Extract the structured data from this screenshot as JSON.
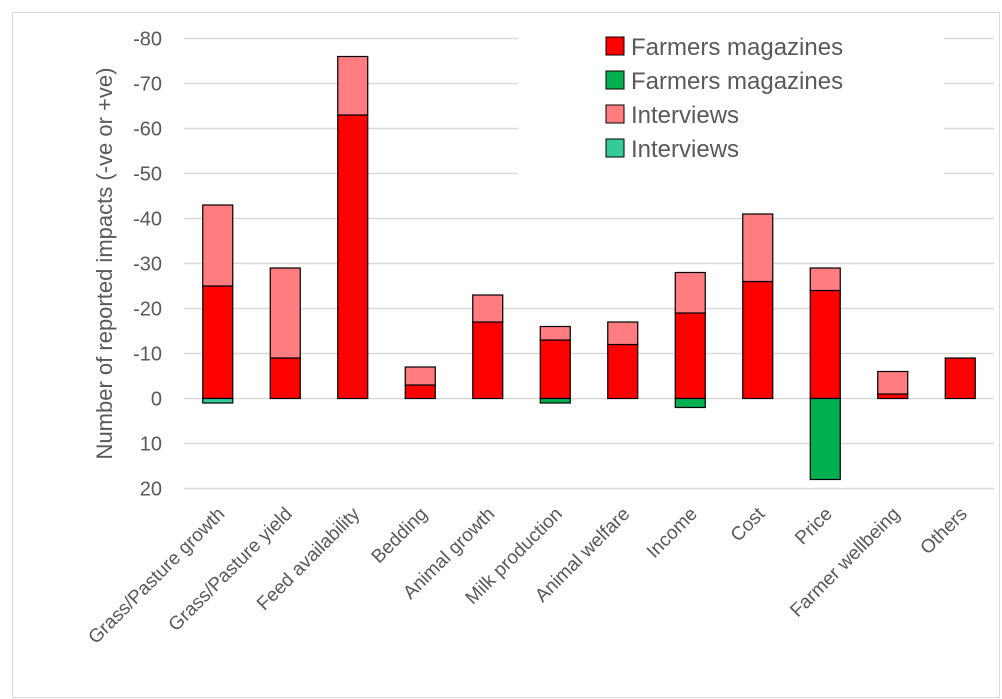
{
  "chart_data": {
    "type": "bar",
    "stacked": true,
    "ylabel": "Number of reported impacts (-ve or +ve)",
    "ylim": [
      -80,
      20
    ],
    "y_ticks": [
      -80,
      -70,
      -60,
      -50,
      -40,
      -30,
      -20,
      -10,
      0,
      10,
      20
    ],
    "grid": true,
    "legend_position": "top-right",
    "categories": [
      "Grass/Pasture growth",
      "Grass/Pasture yield",
      "Feed availability",
      "Bedding",
      "Animal growth",
      "Milk production",
      "Animal welfare",
      "Income",
      "Cost",
      "Price",
      "Farmer wellbeing",
      "Others"
    ],
    "series": [
      {
        "name": "Farmers magazines",
        "color": "#ff0000",
        "values": [
          -25,
          -9,
          -63,
          -3,
          -17,
          -13,
          -12,
          -19,
          -26,
          -24,
          -1,
          -9
        ]
      },
      {
        "name": "Farmers magazines",
        "color": "#00b050",
        "values": [
          0,
          0,
          0,
          0,
          0,
          1,
          0,
          2,
          0,
          18,
          0,
          0
        ]
      },
      {
        "name": "Interviews",
        "color": "#ff7c80",
        "values": [
          -18,
          -20,
          -13,
          -4,
          -6,
          -3,
          -5,
          -9,
          -15,
          -5,
          -5,
          0
        ]
      },
      {
        "name": "Interviews",
        "color": "#33cc99",
        "values": [
          1,
          0,
          0,
          0,
          0,
          0,
          0,
          0,
          0,
          0,
          0,
          0
        ]
      }
    ]
  }
}
